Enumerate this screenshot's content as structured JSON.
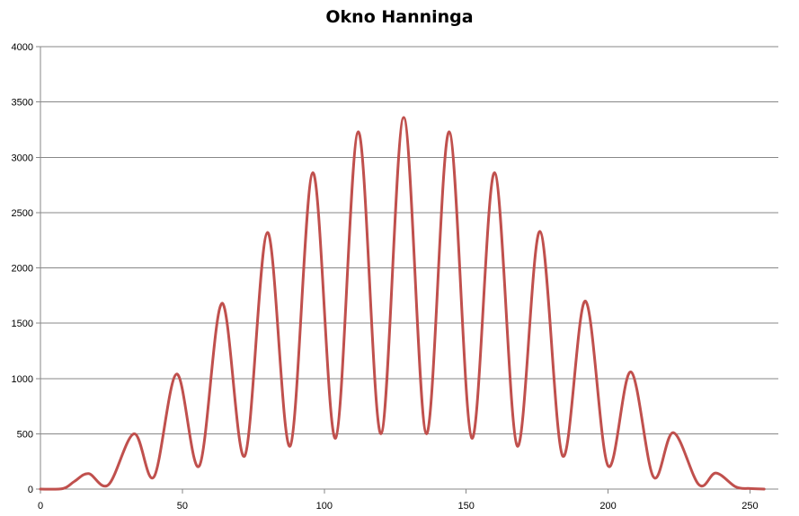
{
  "chart_data": {
    "type": "line",
    "title": "Okno Hanninga",
    "xlabel": "",
    "ylabel": "",
    "xlim": [
      0,
      260
    ],
    "ylim": [
      0,
      4000
    ],
    "x_ticks": [
      0,
      50,
      100,
      150,
      200,
      250
    ],
    "y_ticks": [
      0,
      500,
      1000,
      1500,
      2000,
      2500,
      3000,
      3500,
      4000
    ],
    "grid": "horizontal",
    "legend": "none",
    "series": [
      {
        "color": "#c0504d",
        "x": [
          0,
          8,
          12,
          17,
          24,
          33,
          40,
          48,
          56,
          64,
          72,
          80,
          88,
          96,
          104,
          112,
          120,
          128,
          136,
          144,
          152,
          160,
          168,
          176,
          184,
          192,
          200,
          208,
          216,
          223,
          232,
          238,
          245,
          250,
          255
        ],
        "y": [
          0,
          5,
          70,
          140,
          40,
          500,
          110,
          1040,
          210,
          1680,
          300,
          2320,
          390,
          2860,
          460,
          3230,
          500,
          3360,
          500,
          3230,
          460,
          2860,
          390,
          2330,
          300,
          1700,
          210,
          1060,
          110,
          510,
          40,
          145,
          20,
          5,
          0
        ]
      }
    ]
  }
}
